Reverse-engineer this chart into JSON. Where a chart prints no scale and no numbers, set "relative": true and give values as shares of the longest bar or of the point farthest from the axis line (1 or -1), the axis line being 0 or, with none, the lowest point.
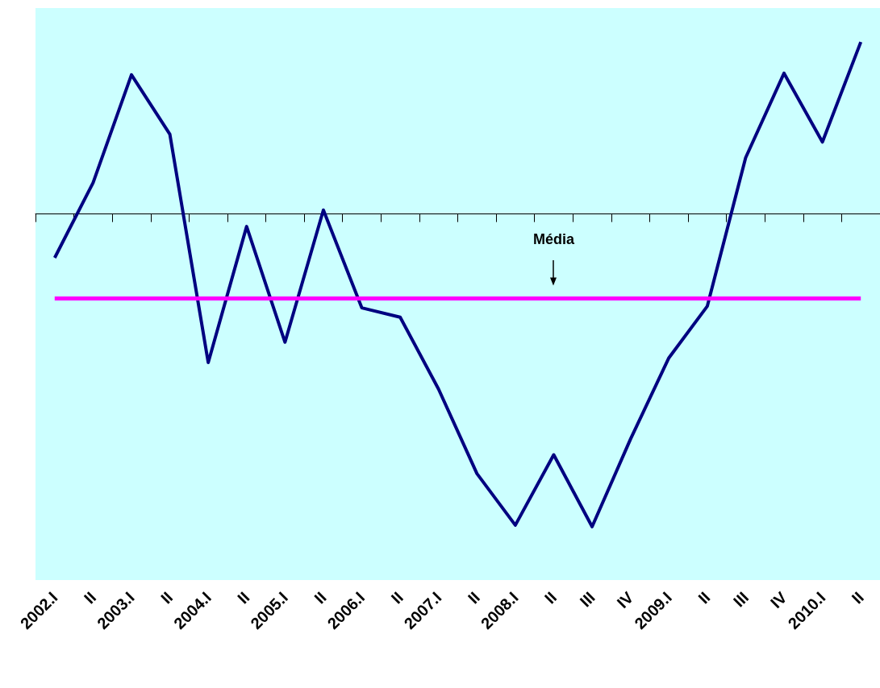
{
  "chart_data": {
    "type": "line",
    "relative": true,
    "marker": "none",
    "categories": [
      "2002.I",
      "II",
      "2003.I",
      "II",
      "2004.I",
      "II",
      "2005.I",
      "II",
      "2006.I",
      "II",
      "2007.I",
      "II",
      "2008.I",
      "II",
      "III",
      "IV",
      "2009.I",
      "II",
      "III",
      "IV",
      "2010.I",
      "II"
    ],
    "series": [
      {
        "color": "#000080",
        "values": [
          -0.14,
          0.1,
          0.445,
          0.255,
          -0.475,
          -0.04,
          -0.41,
          0.0125,
          -0.3,
          -0.33,
          -0.56,
          -0.83,
          -0.995,
          -0.77,
          -1,
          -0.72,
          -0.46,
          -0.295,
          0.18,
          0.45,
          0.23,
          0.55
        ]
      }
    ],
    "ref_lines": [
      {
        "axis": "y",
        "value": -0.27,
        "color": "#ff00ff"
      }
    ],
    "annotations": [
      "Média"
    ]
  }
}
